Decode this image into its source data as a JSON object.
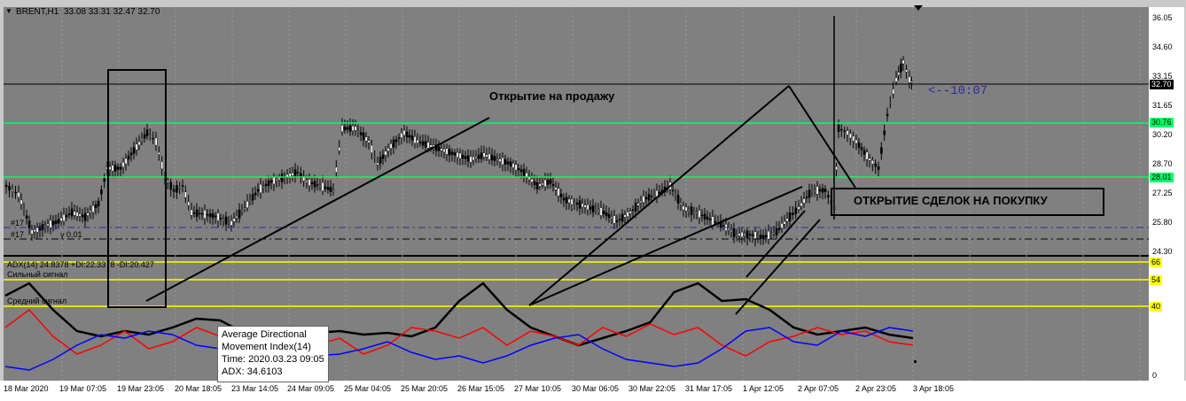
{
  "header": {
    "symbol": "BRENT,H1",
    "ohlc": "33.08 33.31 32.47 32.70",
    "menu_icon": "triangle-down-icon"
  },
  "annotations": {
    "sell_open": "Открытие на продажу",
    "buy_open": "ОТКРЫТИЕ СДЕЛОК НА ПОКУПКУ",
    "countdown": "<--10:07"
  },
  "order_labels": {
    "order1": "#17",
    "order2": "#17",
    "order2_suffix": "y 0.01"
  },
  "price_axis": {
    "ticks": [
      "36.05",
      "34.60",
      "33.15",
      "31.65",
      "30.20",
      "28.70",
      "27.25",
      "25.80",
      "24.30"
    ],
    "current_price": "32.70",
    "levels": [
      {
        "label": "30.76",
        "color": "#00ff66"
      },
      {
        "label": "28.01",
        "color": "#00ff66"
      }
    ]
  },
  "indicator": {
    "title": "ADX(14) 24.8378 +DI:22.3378 -DI:20.427",
    "strong_signal": "Сильный сигнал",
    "medium_signal": "Средний сигнал",
    "levels": [
      {
        "label": "66",
        "color": "#ffff00"
      },
      {
        "label": "54",
        "color": "#ffff00"
      },
      {
        "label": "40",
        "color": "#ffff00"
      }
    ],
    "axis_zero": "0"
  },
  "time_axis": {
    "labels": [
      "18 Mar 2020",
      "19 Mar 07:05",
      "19 Mar 23:05",
      "20 Mar 18:05",
      "23 Mar 14:05",
      "24 Mar 09:05",
      "25 Mar 04:05",
      "25 Mar 20:05",
      "26 Mar 15:05",
      "27 Mar 10:05",
      "30 Mar 06:05",
      "30 Mar 22:05",
      "31 Mar 17:05",
      "1 Apr 12:05",
      "2 Apr 07:05",
      "2 Apr 23:05",
      "3 Apr 18:05"
    ]
  },
  "tooltip": {
    "line1": "Average Directional",
    "line2": "Movement Index(14)",
    "line3": "Time: 2020.03.23 09:05",
    "line4": "ADX: 34.6103"
  },
  "colors": {
    "background": "#808080",
    "bull_candle": "#ffffff",
    "bear_candle": "#000000",
    "plus_di": "#ff0000",
    "minus_di": "#0000ff",
    "adx": "#000000",
    "level_line": "#00ff66",
    "adx_level": "#ffff00"
  },
  "chart_data": {
    "type": "line",
    "title": "BRENT,H1",
    "price_ylim": [
      24.3,
      36.05
    ],
    "adx_ylim": [
      0,
      70
    ],
    "series": [
      {
        "name": "ADX",
        "values": [
          48,
          55,
          40,
          28,
          25,
          28,
          26,
          30,
          35,
          34,
          27,
          25,
          26,
          27,
          28,
          26,
          27,
          25,
          30,
          45,
          55,
          40,
          30,
          25,
          20,
          24,
          28,
          33,
          50,
          55,
          45,
          46,
          40,
          30,
          26,
          28,
          30,
          26,
          24
        ]
      },
      {
        "name": "+DI",
        "values": [
          30,
          40,
          25,
          15,
          20,
          28,
          18,
          22,
          30,
          25,
          26,
          22,
          18,
          20,
          24,
          15,
          20,
          30,
          28,
          24,
          30,
          20,
          28,
          25,
          20,
          30,
          25,
          32,
          26,
          30,
          20,
          14,
          22,
          25,
          30,
          26,
          28,
          22,
          20
        ]
      },
      {
        "name": "-DI",
        "values": [
          8,
          6,
          12,
          20,
          26,
          24,
          28,
          26,
          20,
          18,
          22,
          24,
          18,
          14,
          15,
          18,
          22,
          16,
          12,
          14,
          10,
          14,
          20,
          24,
          26,
          18,
          12,
          10,
          8,
          10,
          18,
          28,
          30,
          22,
          20,
          28,
          25,
          30,
          28
        ]
      }
    ]
  }
}
